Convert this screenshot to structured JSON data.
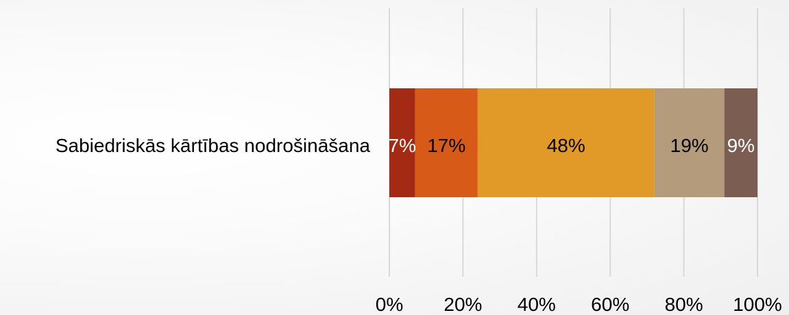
{
  "chart_data": {
    "type": "bar",
    "orientation": "horizontal",
    "stacked": true,
    "percent": true,
    "categories": [
      "Sabiedriskās kārtības nodrošināšana"
    ],
    "series": [
      {
        "values": [
          7
        ],
        "color": "#a52a13",
        "label": "7%",
        "label_color": "#ffffff"
      },
      {
        "values": [
          17
        ],
        "color": "#d85a19",
        "label": "17%",
        "label_color": "#000000"
      },
      {
        "values": [
          48
        ],
        "color": "#e19a27",
        "label": "48%",
        "label_color": "#000000"
      },
      {
        "values": [
          19
        ],
        "color": "#b39b7c",
        "label": "19%",
        "label_color": "#000000"
      },
      {
        "values": [
          9
        ],
        "color": "#7b5e51",
        "label": "9%",
        "label_color": "#ffffff"
      }
    ],
    "x_ticks": [
      "0%",
      "20%",
      "40%",
      "60%",
      "80%",
      "100%"
    ],
    "xlim": [
      0,
      100
    ],
    "grid": true,
    "legend": "none",
    "title": "",
    "xlabel": "",
    "ylabel": ""
  }
}
